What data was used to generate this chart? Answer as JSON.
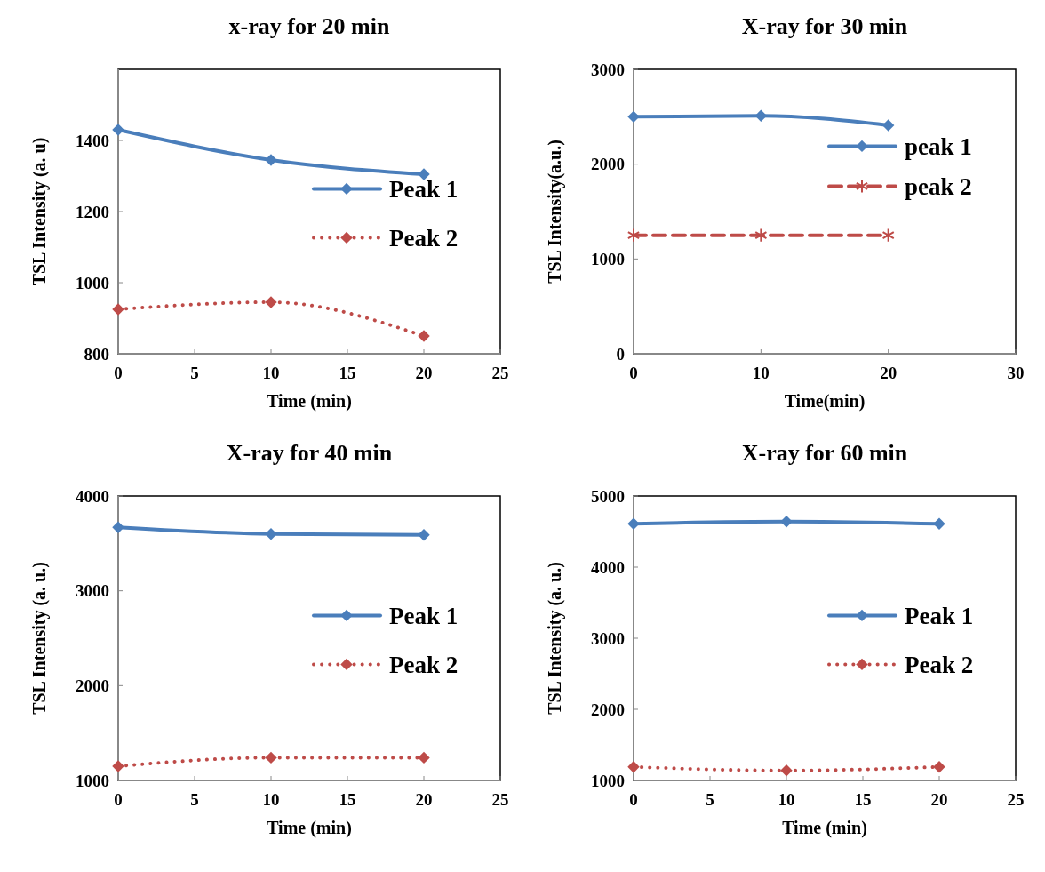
{
  "chart_data": [
    {
      "type": "line",
      "title": "x-ray for 20 min",
      "xlabel": "Time (min)",
      "ylabel": "TSL Intensity (a. u)",
      "x": [
        0,
        10,
        20
      ],
      "xlim": [
        0,
        25
      ],
      "xticks": [
        0,
        5,
        10,
        15,
        20,
        25
      ],
      "ylim": [
        800,
        1600
      ],
      "yticks": [
        800,
        1000,
        1200,
        1400
      ],
      "legend": "right",
      "series": [
        {
          "name": "Peak 1",
          "color": "#4a7ebb",
          "values": [
            1430,
            1345,
            1305
          ],
          "marker": "diamond",
          "line_style": "solid"
        },
        {
          "name": "Peak 2",
          "color": "#be4b48",
          "values": [
            925,
            945,
            850
          ],
          "marker": "diamond",
          "line_style": "dotted"
        }
      ]
    },
    {
      "type": "line",
      "title": "X-ray for 30 min",
      "xlabel": "Time(min)",
      "ylabel": "TSL Intensity(a.u.)",
      "x": [
        0,
        10,
        20
      ],
      "xlim": [
        0,
        30
      ],
      "xticks": [
        0,
        10,
        20,
        30
      ],
      "ylim": [
        0,
        3000
      ],
      "yticks": [
        0,
        1000,
        2000,
        3000
      ],
      "legend": "top right",
      "series": [
        {
          "name": "peak 1",
          "color": "#4a7ebb",
          "values": [
            2500,
            2510,
            2410
          ],
          "marker": "diamond",
          "line_style": "solid"
        },
        {
          "name": "peak 2",
          "color": "#be4b48",
          "values": [
            1250,
            1250,
            1250
          ],
          "marker": "cross",
          "line_style": "dashed"
        }
      ]
    },
    {
      "type": "line",
      "title": "X-ray for 40 min",
      "xlabel": "Time (min)",
      "ylabel": "TSL Intensity (a. u.)",
      "x": [
        0,
        10,
        20
      ],
      "xlim": [
        0,
        25
      ],
      "xticks": [
        0,
        5,
        10,
        15,
        20,
        25
      ],
      "ylim": [
        1000,
        4000
      ],
      "yticks": [
        1000,
        2000,
        3000,
        4000
      ],
      "legend": "right",
      "series": [
        {
          "name": "Peak 1",
          "color": "#4a7ebb",
          "values": [
            3670,
            3600,
            3590
          ],
          "marker": "diamond",
          "line_style": "solid"
        },
        {
          "name": "Peak 2",
          "color": "#be4b48",
          "values": [
            1150,
            1240,
            1240
          ],
          "marker": "diamond",
          "line_style": "dotted"
        }
      ]
    },
    {
      "type": "line",
      "title": "X-ray for 60 min",
      "xlabel": "Time (min)",
      "ylabel": "TSL Intensity (a. u.)",
      "x": [
        0,
        10,
        20
      ],
      "xlim": [
        0,
        25
      ],
      "xticks": [
        0,
        5,
        10,
        15,
        20,
        25
      ],
      "ylim": [
        1000,
        5000
      ],
      "yticks": [
        1000,
        2000,
        3000,
        4000,
        5000
      ],
      "legend": "right",
      "series": [
        {
          "name": "Peak 1",
          "color": "#4a7ebb",
          "values": [
            4610,
            4640,
            4610
          ],
          "marker": "diamond",
          "line_style": "solid"
        },
        {
          "name": "Peak 2",
          "color": "#be4b48",
          "values": [
            1190,
            1140,
            1190
          ],
          "marker": "diamond",
          "line_style": "dotted"
        }
      ]
    }
  ]
}
